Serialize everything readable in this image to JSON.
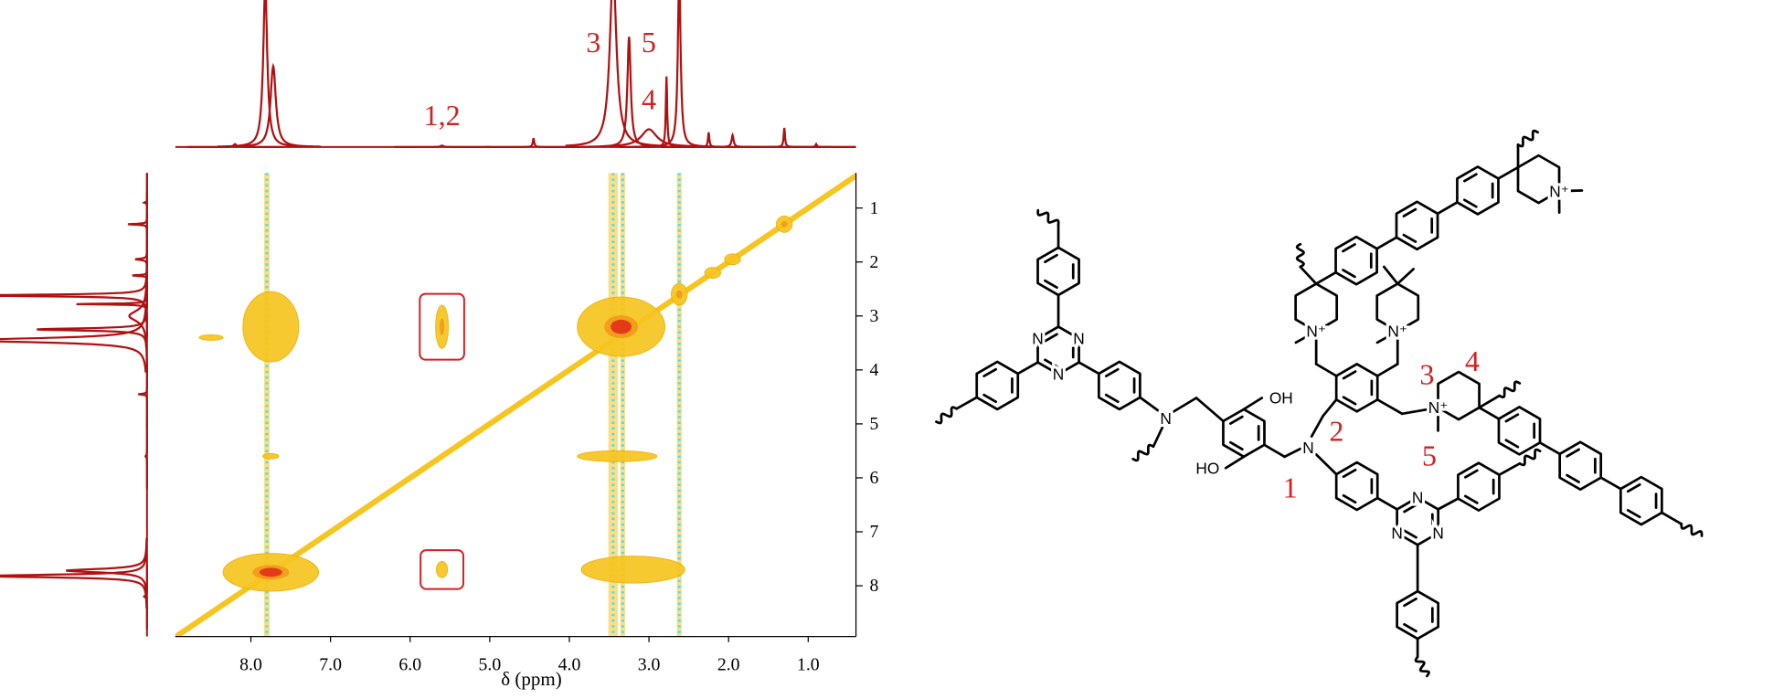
{
  "chart_data": {
    "type": "nmr2d",
    "xlabel": "δ (ppm)",
    "xlim": [
      8.95,
      0.4
    ],
    "ylim": [
      0.35,
      8.94
    ],
    "xticks": [
      {
        "value": 8,
        "label": "8.0"
      },
      {
        "value": 7,
        "label": "7.0"
      },
      {
        "value": 6,
        "label": "6.0"
      },
      {
        "value": 5,
        "label": "5.0"
      },
      {
        "value": 4,
        "label": "4.0"
      },
      {
        "value": 3,
        "label": "3.0"
      },
      {
        "value": 2,
        "label": "2.0"
      },
      {
        "value": 1,
        "label": "1.0"
      }
    ],
    "yticks": [
      1,
      2,
      3,
      4,
      5,
      6,
      7,
      8
    ],
    "diagonal": true,
    "projection": {
      "color": "#b01010",
      "ppm": [
        8.2,
        7.82,
        7.72,
        5.6,
        4.45,
        3.45,
        3.25,
        3.0,
        2.78,
        2.62,
        2.25,
        1.95,
        1.3,
        0.9
      ],
      "heights": [
        0.02,
        1.1,
        0.55,
        0.01,
        0.06,
        1.2,
        0.75,
        0.12,
        0.48,
        1.2,
        0.1,
        0.08,
        0.13,
        0.02
      ],
      "widths": [
        0.02,
        0.03,
        0.04,
        0.02,
        0.01,
        0.05,
        0.025,
        0.12,
        0.01,
        0.02,
        0.01,
        0.015,
        0.01,
        0.01
      ],
      "labels": [
        null,
        null,
        null,
        "1,2",
        null,
        "3",
        "5",
        "4",
        null,
        null,
        null,
        null,
        null,
        null
      ]
    },
    "streaks": {
      "color": "#3ee0f0",
      "x": [
        7.8,
        3.45,
        3.33,
        2.62
      ],
      "width": [
        0.07,
        0.12,
        0.06,
        0.06
      ]
    },
    "contour_colors": [
      "#f7c520",
      "#f29a1a",
      "#e2321a"
    ],
    "highlight_color": "#d42020",
    "cross_peaks": {
      "x": [
        7.75,
        7.75,
        3.35,
        3.2,
        5.6,
        5.6,
        2.62,
        3.4,
        1.3,
        7.75,
        8.5,
        2.2,
        1.95
      ],
      "y": [
        3.2,
        7.75,
        3.2,
        7.7,
        3.2,
        7.7,
        2.6,
        5.6,
        1.3,
        5.6,
        3.4,
        2.2,
        1.95
      ],
      "rx": [
        0.35,
        0.6,
        0.55,
        0.65,
        0.08,
        0.07,
        0.1,
        0.5,
        0.1,
        0.1,
        0.15,
        0.1,
        0.1
      ],
      "ry": [
        0.65,
        0.35,
        0.55,
        0.25,
        0.4,
        0.15,
        0.2,
        0.1,
        0.15,
        0.05,
        0.05,
        0.1,
        0.1
      ],
      "level": [
        1,
        3,
        3,
        1,
        2,
        1,
        2,
        1,
        2,
        1,
        1,
        1,
        1
      ],
      "highlight": [
        false,
        false,
        false,
        false,
        true,
        true,
        false,
        false,
        false,
        false,
        false,
        false,
        false
      ]
    }
  },
  "structure": {
    "label_color": "#d42020",
    "atom_labels": [
      "N",
      "N",
      "N",
      "N",
      "OH",
      "HO",
      "N",
      "N",
      "N",
      "N",
      "N⁺",
      "N⁺",
      "N⁺",
      "N⁺"
    ],
    "position_labels": [
      "1",
      "2",
      "3",
      "4",
      "5"
    ]
  }
}
